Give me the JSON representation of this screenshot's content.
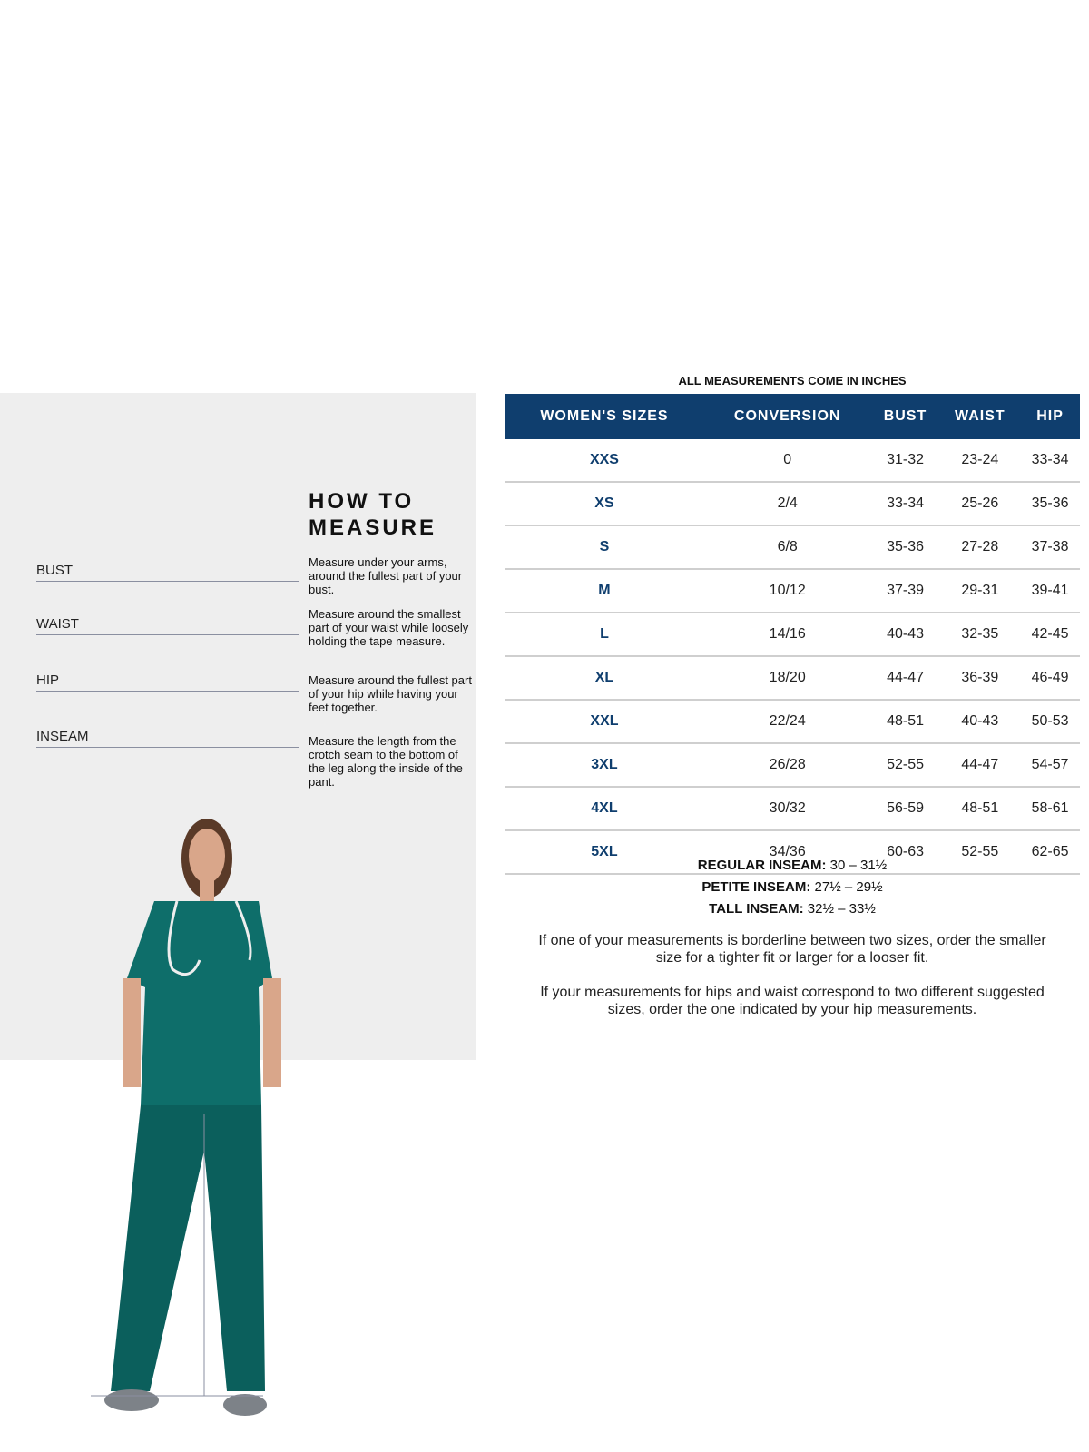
{
  "left_panel": {
    "title": "HOW TO MEASURE",
    "measurements": [
      {
        "label": "BUST",
        "description": "Measure under your arms, around the fullest part of your bust."
      },
      {
        "label": "WAIST",
        "description": "Measure around the smallest part of your waist while loosely holding the tape measure."
      },
      {
        "label": "HIP",
        "description": "Measure around the fullest part of your hip while having your feet together."
      },
      {
        "label": "INSEAM",
        "description": "Measure the length from the crotch seam to the bottom of the leg along the inside of the pant."
      }
    ],
    "scrub_color": "#0e6e6a"
  },
  "table": {
    "caption": "ALL MEASUREMENTS COME IN INCHES",
    "header_color": "#0f3e6e",
    "columns": [
      "WOMEN'S SIZES",
      "CONVERSION",
      "BUST",
      "WAIST",
      "HIP"
    ],
    "rows": [
      [
        "XXS",
        "0",
        "31-32",
        "23-24",
        "33-34"
      ],
      [
        "XS",
        "2/4",
        "33-34",
        "25-26",
        "35-36"
      ],
      [
        "S",
        "6/8",
        "35-36",
        "27-28",
        "37-38"
      ],
      [
        "M",
        "10/12",
        "37-39",
        "29-31",
        "39-41"
      ],
      [
        "L",
        "14/16",
        "40-43",
        "32-35",
        "42-45"
      ],
      [
        "XL",
        "18/20",
        "44-47",
        "36-39",
        "46-49"
      ],
      [
        "XXL",
        "22/24",
        "48-51",
        "40-43",
        "50-53"
      ],
      [
        "3XL",
        "26/28",
        "52-55",
        "44-47",
        "54-57"
      ],
      [
        "4XL",
        "30/32",
        "56-59",
        "48-51",
        "58-61"
      ],
      [
        "5XL",
        "34/36",
        "60-63",
        "52-55",
        "62-65"
      ]
    ]
  },
  "inseam": [
    {
      "label": "REGULAR INSEAM:",
      "value": "30  – 31½"
    },
    {
      "label": "PETITE INSEAM:",
      "value": "27½ – 29½"
    },
    {
      "label": "TALL INSEAM:",
      "value": "32½ – 33½"
    }
  ],
  "notes": [
    "If one of your measurements is borderline between two sizes, order the smaller size for a tighter fit or larger for a looser fit.",
    "If your measurements for hips and waist correspond to two different suggested sizes, order the one indicated by your hip measurements."
  ]
}
